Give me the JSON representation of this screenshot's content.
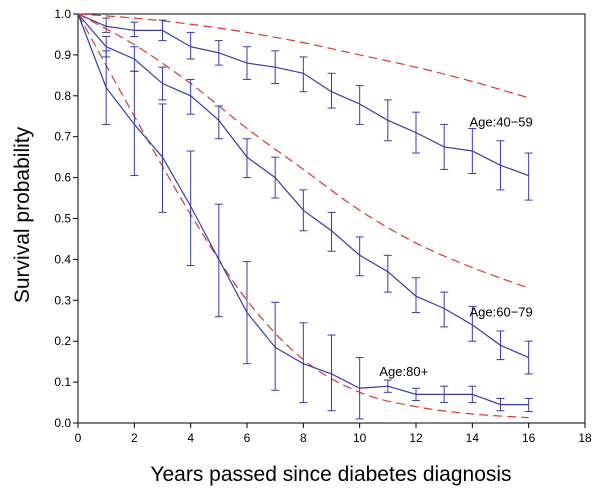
{
  "chart_data": {
    "type": "line",
    "xlabel": "Years passed since diabetes diagnosis",
    "ylabel": "Survival probability",
    "xlim": [
      0,
      18
    ],
    "ylim": [
      0,
      1.0
    ],
    "x_ticks": [
      0,
      2,
      4,
      6,
      8,
      10,
      12,
      14,
      16,
      18
    ],
    "y_ticks": [
      0.0,
      0.1,
      0.2,
      0.3,
      0.4,
      0.5,
      0.6,
      0.7,
      0.8,
      0.9,
      1.0
    ],
    "y_tick_labels": [
      "0.0",
      "0.1",
      "0.2",
      "0.3",
      "0.4",
      "0.5",
      "0.6",
      "0.7",
      "0.8",
      "0.9",
      "1.0"
    ],
    "grid": false,
    "legend": "none",
    "colors": {
      "observed": "#3b3ba8",
      "expected": "#d43a3a"
    },
    "series": [
      {
        "name": "Age:40−59",
        "label_at": [
          13.9,
          0.725
        ],
        "x": [
          0,
          1,
          2,
          3,
          4,
          5,
          6,
          7,
          8,
          9,
          10,
          11,
          12,
          13,
          14,
          15,
          16
        ],
        "observed": [
          1.0,
          0.97,
          0.96,
          0.96,
          0.92,
          0.905,
          0.88,
          0.87,
          0.855,
          0.81,
          0.78,
          0.74,
          0.71,
          0.675,
          0.665,
          0.63,
          0.605
        ],
        "lower": [
          1.0,
          0.955,
          0.945,
          0.935,
          0.89,
          0.875,
          0.84,
          0.83,
          0.81,
          0.77,
          0.73,
          0.69,
          0.66,
          0.62,
          0.61,
          0.57,
          0.545
        ],
        "upper": [
          1.0,
          0.99,
          0.98,
          0.985,
          0.955,
          0.935,
          0.92,
          0.91,
          0.895,
          0.855,
          0.825,
          0.79,
          0.76,
          0.73,
          0.72,
          0.69,
          0.66
        ],
        "expected_x": [
          0,
          2,
          4,
          6,
          8,
          10,
          12,
          14,
          16
        ],
        "expected": [
          1.0,
          0.99,
          0.975,
          0.955,
          0.93,
          0.9,
          0.87,
          0.835,
          0.795
        ]
      },
      {
        "name": "Age:60−79",
        "label_at": [
          13.9,
          0.26
        ],
        "x": [
          0,
          1,
          2,
          3,
          4,
          5,
          6,
          7,
          8,
          9,
          10,
          11,
          12,
          13,
          14,
          15,
          16
        ],
        "observed": [
          1.0,
          0.92,
          0.89,
          0.83,
          0.8,
          0.74,
          0.65,
          0.6,
          0.52,
          0.47,
          0.41,
          0.37,
          0.31,
          0.28,
          0.24,
          0.19,
          0.16
        ],
        "lower": [
          1.0,
          0.895,
          0.86,
          0.79,
          0.755,
          0.695,
          0.6,
          0.55,
          0.47,
          0.42,
          0.36,
          0.32,
          0.27,
          0.235,
          0.2,
          0.155,
          0.12
        ],
        "upper": [
          1.0,
          0.945,
          0.92,
          0.87,
          0.84,
          0.775,
          0.695,
          0.65,
          0.57,
          0.515,
          0.455,
          0.41,
          0.355,
          0.32,
          0.285,
          0.225,
          0.2
        ],
        "expected_x": [
          0,
          2,
          4,
          6,
          8,
          10,
          12,
          14,
          16
        ],
        "expected": [
          1.0,
          0.925,
          0.83,
          0.72,
          0.62,
          0.52,
          0.44,
          0.38,
          0.33
        ]
      },
      {
        "name": "Age:80+",
        "label_at": [
          10.7,
          0.115
        ],
        "x": [
          0,
          1,
          2,
          3,
          4,
          5,
          6,
          7,
          8,
          9,
          10,
          11,
          12,
          13,
          14,
          15,
          16
        ],
        "observed": [
          1.0,
          0.82,
          0.73,
          0.65,
          0.53,
          0.4,
          0.27,
          0.185,
          0.145,
          0.12,
          0.085,
          0.09,
          0.07,
          0.07,
          0.07,
          0.045,
          0.045
        ],
        "lower": [
          1.0,
          0.73,
          0.605,
          0.515,
          0.385,
          0.26,
          0.145,
          0.08,
          0.05,
          0.03,
          0.01,
          0.075,
          0.055,
          0.05,
          0.05,
          0.03,
          0.028
        ],
        "upper": [
          1.0,
          0.91,
          0.86,
          0.78,
          0.665,
          0.535,
          0.395,
          0.295,
          0.245,
          0.215,
          0.16,
          0.105,
          0.085,
          0.09,
          0.09,
          0.06,
          0.06
        ],
        "expected_x": [
          0,
          2,
          4,
          6,
          8,
          10,
          12,
          14,
          16
        ],
        "expected": [
          1.0,
          0.75,
          0.51,
          0.3,
          0.155,
          0.075,
          0.04,
          0.022,
          0.013
        ]
      }
    ]
  }
}
